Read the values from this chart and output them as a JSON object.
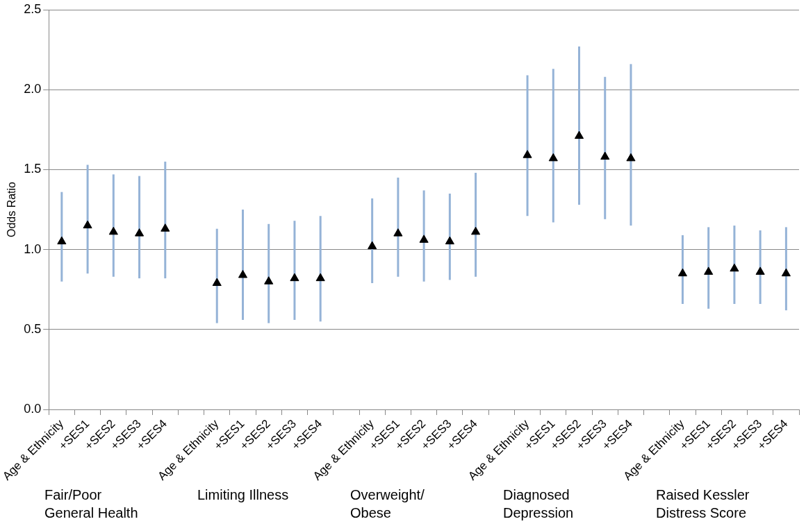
{
  "chart_data": {
    "type": "scatter",
    "ylabel": "Odds Ratio",
    "categories": [
      "Age & Ethnicity",
      "+SES1",
      "+SES2",
      "+SES3",
      "+SES4",
      null,
      "Age & Ethnicity",
      "+SES1",
      "+SES2",
      "+SES3",
      "+SES4",
      null,
      "Age & Ethnicity",
      "+SES1",
      "+SES2",
      "+SES3",
      "+SES4",
      null,
      "Age & Ethnicity",
      "+SES1",
      "+SES2",
      "+SES3",
      "+SES4",
      null,
      "Age & Ethnicity",
      "+SES1",
      "+SES2",
      "+SES3",
      "+SES4"
    ],
    "series": [
      {
        "color": "#000000",
        "values": [
          1.05,
          1.15,
          1.11,
          1.1,
          1.13,
          null,
          0.79,
          0.84,
          0.8,
          0.82,
          0.82,
          null,
          1.02,
          1.1,
          1.06,
          1.05,
          1.11,
          null,
          1.59,
          1.57,
          1.71,
          1.58,
          1.57,
          null,
          0.85,
          0.86,
          0.88,
          0.86,
          0.85
        ],
        "errors": [
          [
            0.8,
            1.36
          ],
          [
            0.85,
            1.53
          ],
          [
            0.83,
            1.47
          ],
          [
            0.82,
            1.46
          ],
          [
            0.82,
            1.55
          ],
          null,
          [
            0.54,
            1.13
          ],
          [
            0.56,
            1.25
          ],
          [
            0.54,
            1.16
          ],
          [
            0.56,
            1.18
          ],
          [
            0.55,
            1.21
          ],
          null,
          [
            0.79,
            1.32
          ],
          [
            0.83,
            1.45
          ],
          [
            0.8,
            1.37
          ],
          [
            0.81,
            1.35
          ],
          [
            0.83,
            1.48
          ],
          null,
          [
            1.21,
            2.09
          ],
          [
            1.17,
            2.13
          ],
          [
            1.28,
            2.27
          ],
          [
            1.19,
            2.08
          ],
          [
            1.15,
            2.16
          ],
          null,
          [
            0.66,
            1.09
          ],
          [
            0.63,
            1.14
          ],
          [
            0.66,
            1.15
          ],
          [
            0.66,
            1.12
          ],
          [
            0.62,
            1.14
          ]
        ]
      }
    ],
    "ylim": [
      0,
      2.5
    ],
    "yticks": [
      {
        "value": 0,
        "label": "0.0"
      },
      {
        "value": 0.5,
        "label": "0.5"
      },
      {
        "value": 1,
        "label": "1.0"
      },
      {
        "value": 1.5,
        "label": "1.5"
      },
      {
        "value": 2,
        "label": "2.0"
      },
      {
        "value": 2.5,
        "label": "2.5"
      }
    ],
    "grid": "y",
    "marker": "triangle",
    "legend": false,
    "annotations": [
      "Fair/Poor General Health",
      "Limiting Illness",
      "Overweight/ Obese",
      "Diagnosed Depression",
      "Raised Kessler Distress Score"
    ]
  }
}
